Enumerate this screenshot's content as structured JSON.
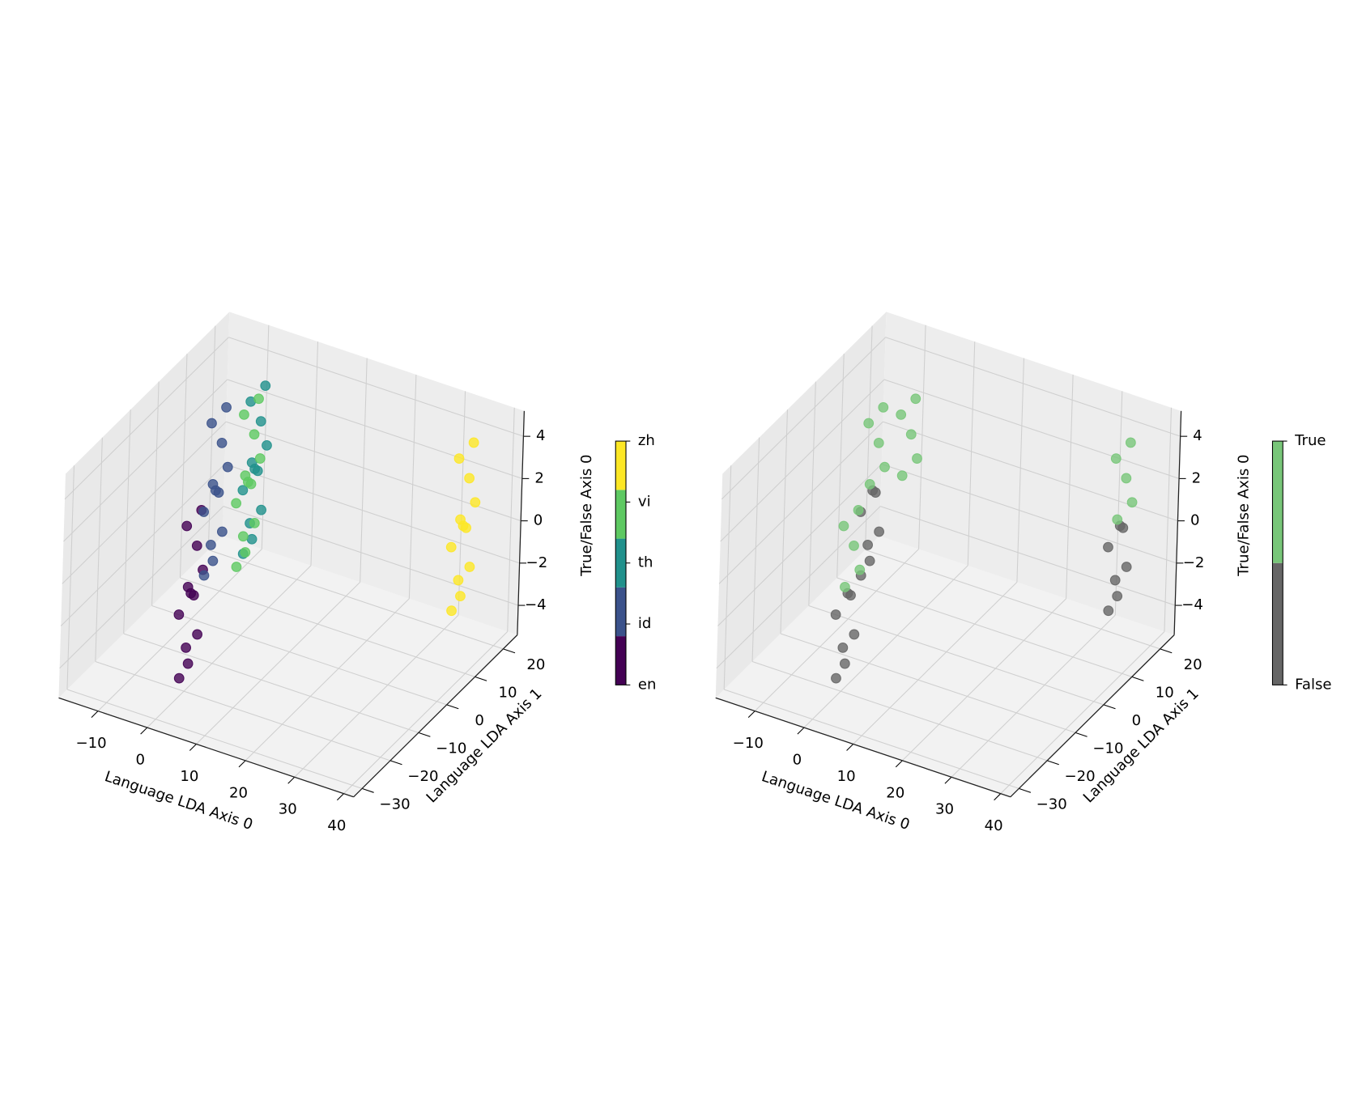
{
  "chart_data": [
    {
      "type": "scatter3d",
      "xlabel": "Language LDA Axis 0",
      "ylabel": "Language LDA Axis 1",
      "zlabel": "True/False Axis 0",
      "xlim": [
        -18,
        42
      ],
      "ylim": [
        -33,
        25
      ],
      "zlim": [
        -5.4,
        5.2
      ],
      "xticks": [
        {
          "value": -10,
          "label": "−10"
        },
        0,
        10,
        20,
        30,
        40
      ],
      "yticks": [
        {
          "value": -30,
          "label": "−30"
        },
        {
          "value": -20,
          "label": "−20"
        },
        {
          "value": -10,
          "label": "−10"
        },
        0,
        10,
        20
      ],
      "zticks": [
        {
          "value": -4,
          "label": "−4"
        },
        {
          "value": -2,
          "label": "−2"
        },
        0,
        2,
        4
      ],
      "grid": true,
      "series": [
        {
          "name": "en",
          "color": "#440154",
          "x": [
            3,
            4.5,
            1.8,
            3.8,
            2,
            5,
            1,
            3.5,
            2.5,
            4,
            1.5,
            3.3
          ],
          "y": [
            -24,
            -25,
            -23,
            -22.5,
            -25.5,
            -23.5,
            -24.5,
            -26,
            -22,
            -23,
            -23.5,
            -24.8
          ],
          "z": [
            0,
            2.5,
            -2.8,
            3.8,
            -3.9,
            1.2,
            -1.1,
            0.6,
            -0.4,
            -2,
            3,
            -3.2
          ]
        },
        {
          "name": "id",
          "color": "#3b528b",
          "x": [
            -9,
            -7.5,
            -10.2,
            -8.2,
            -10,
            -7,
            -11,
            -8.5,
            -9.5,
            -8,
            -10.5,
            -8.7
          ],
          "y": [
            5.7,
            4.7,
            6.7,
            7.2,
            4.2,
            6.2,
            5.2,
            3.7,
            7.7,
            6.7,
            6.2,
            4.9
          ],
          "z": [
            0,
            2.5,
            -2.8,
            3.8,
            -3.9,
            1.2,
            -1.1,
            0.6,
            -0.4,
            -2,
            3,
            -3.2
          ]
        },
        {
          "name": "th",
          "color": "#21918c",
          "x": [
            -6.4,
            -4.9,
            -7.6,
            -5.6,
            -7.4,
            -4.4,
            -8.4,
            -5.9,
            -6.9,
            -5.4,
            -7.9,
            -6.1
          ],
          "y": [
            15,
            14,
            16,
            16.5,
            13.5,
            15.5,
            14.5,
            13,
            17,
            16,
            15.5,
            14.2
          ],
          "z": [
            0,
            2.5,
            -2.8,
            3.8,
            -3.9,
            1.2,
            -1.1,
            0.6,
            -0.4,
            -2,
            3,
            -3.2
          ]
        },
        {
          "name": "vi",
          "color": "#5ec962",
          "x": [
            -5.4,
            -3.9,
            -6.6,
            -4.6,
            -6.4,
            -3.4,
            -7.4,
            -4.9,
            -5.9,
            -4.4,
            -6.9,
            -5.1
          ],
          "y": [
            10.9,
            9.9,
            11.9,
            12.4,
            9.4,
            11.4,
            10.4,
            8.9,
            12.9,
            11.9,
            11.4,
            10.1
          ],
          "z": [
            0,
            2.5,
            -2.8,
            3.8,
            -3.9,
            1.2,
            -1.1,
            0.6,
            -0.4,
            -2,
            3,
            -3.2
          ]
        },
        {
          "name": "zh",
          "color": "#fde725",
          "x": [
            34,
            35.5,
            32.8,
            34.8,
            33,
            36,
            32,
            34.5,
            33.5,
            35,
            32.5,
            34.3
          ],
          "y": [
            18.5,
            17.5,
            19.5,
            20,
            17,
            19,
            18,
            16.5,
            20.5,
            19.5,
            19,
            17.7
          ],
          "z": [
            0,
            2.5,
            -2.8,
            3.8,
            -3.9,
            1.2,
            -1.1,
            0.6,
            -0.4,
            -2,
            3,
            -3.2
          ]
        }
      ]
    },
    {
      "type": "scatter3d",
      "xlabel": "Language LDA Axis 0",
      "ylabel": "Language LDA Axis 1",
      "zlabel": "True/False Axis 0",
      "xlim": [
        -18,
        42
      ],
      "ylim": [
        -33,
        25
      ],
      "zlim": [
        -5.4,
        5.2
      ],
      "xticks": [
        {
          "value": -10,
          "label": "−10"
        },
        0,
        10,
        20,
        30,
        40
      ],
      "yticks": [
        {
          "value": -30,
          "label": "−30"
        },
        {
          "value": -20,
          "label": "−20"
        },
        {
          "value": -10,
          "label": "−10"
        },
        0,
        10,
        20
      ],
      "zticks": [
        {
          "value": -4,
          "label": "−4"
        },
        {
          "value": -2,
          "label": "−2"
        },
        0,
        2,
        4
      ],
      "grid": true,
      "series": [
        {
          "name": "False",
          "color": "#666666",
          "x": [
            3,
            1.8,
            2,
            1,
            2.5,
            4,
            3.3,
            -9,
            -10.2,
            -10,
            -11,
            -9.5,
            -8,
            -8.7,
            34,
            32.8,
            33,
            32,
            33.5,
            35,
            34.3
          ],
          "y": [
            -24,
            -23,
            -25.5,
            -24.5,
            -22,
            -23,
            -24.8,
            5.7,
            6.7,
            4.2,
            5.2,
            7.7,
            6.7,
            4.9,
            18.5,
            19.5,
            17,
            18,
            20.5,
            19.5,
            17.7
          ],
          "z": [
            0,
            -2.8,
            -3.9,
            -1.1,
            -0.4,
            -2,
            -3.2,
            0,
            -2.8,
            -3.9,
            -1.1,
            -0.4,
            -2,
            -3.2,
            0,
            -2.8,
            -3.9,
            -1.1,
            -0.4,
            -2,
            -3.2
          ]
        },
        {
          "name": "True",
          "color": "#78c679",
          "x": [
            4.5,
            3.8,
            5,
            3.5,
            1.5,
            -7.5,
            -8.2,
            -7,
            -8.5,
            -10.5,
            -3.9,
            -4.6,
            -3.4,
            -4.9,
            -6.9,
            35.5,
            34.8,
            36,
            34.5,
            32.5
          ],
          "y": [
            -25,
            -22.5,
            -23.5,
            -26,
            -23.5,
            4.7,
            7.2,
            6.2,
            3.7,
            6.2,
            9.9,
            12.4,
            11.4,
            8.9,
            11.4,
            17.5,
            20,
            19,
            16.5,
            19
          ],
          "z": [
            2.5,
            3.8,
            1.2,
            0.6,
            3,
            2.5,
            3.8,
            1.2,
            0.6,
            3,
            2.5,
            3.8,
            1.2,
            0.6,
            3,
            2.5,
            3.8,
            1.2,
            0.6,
            3
          ]
        }
      ]
    }
  ]
}
